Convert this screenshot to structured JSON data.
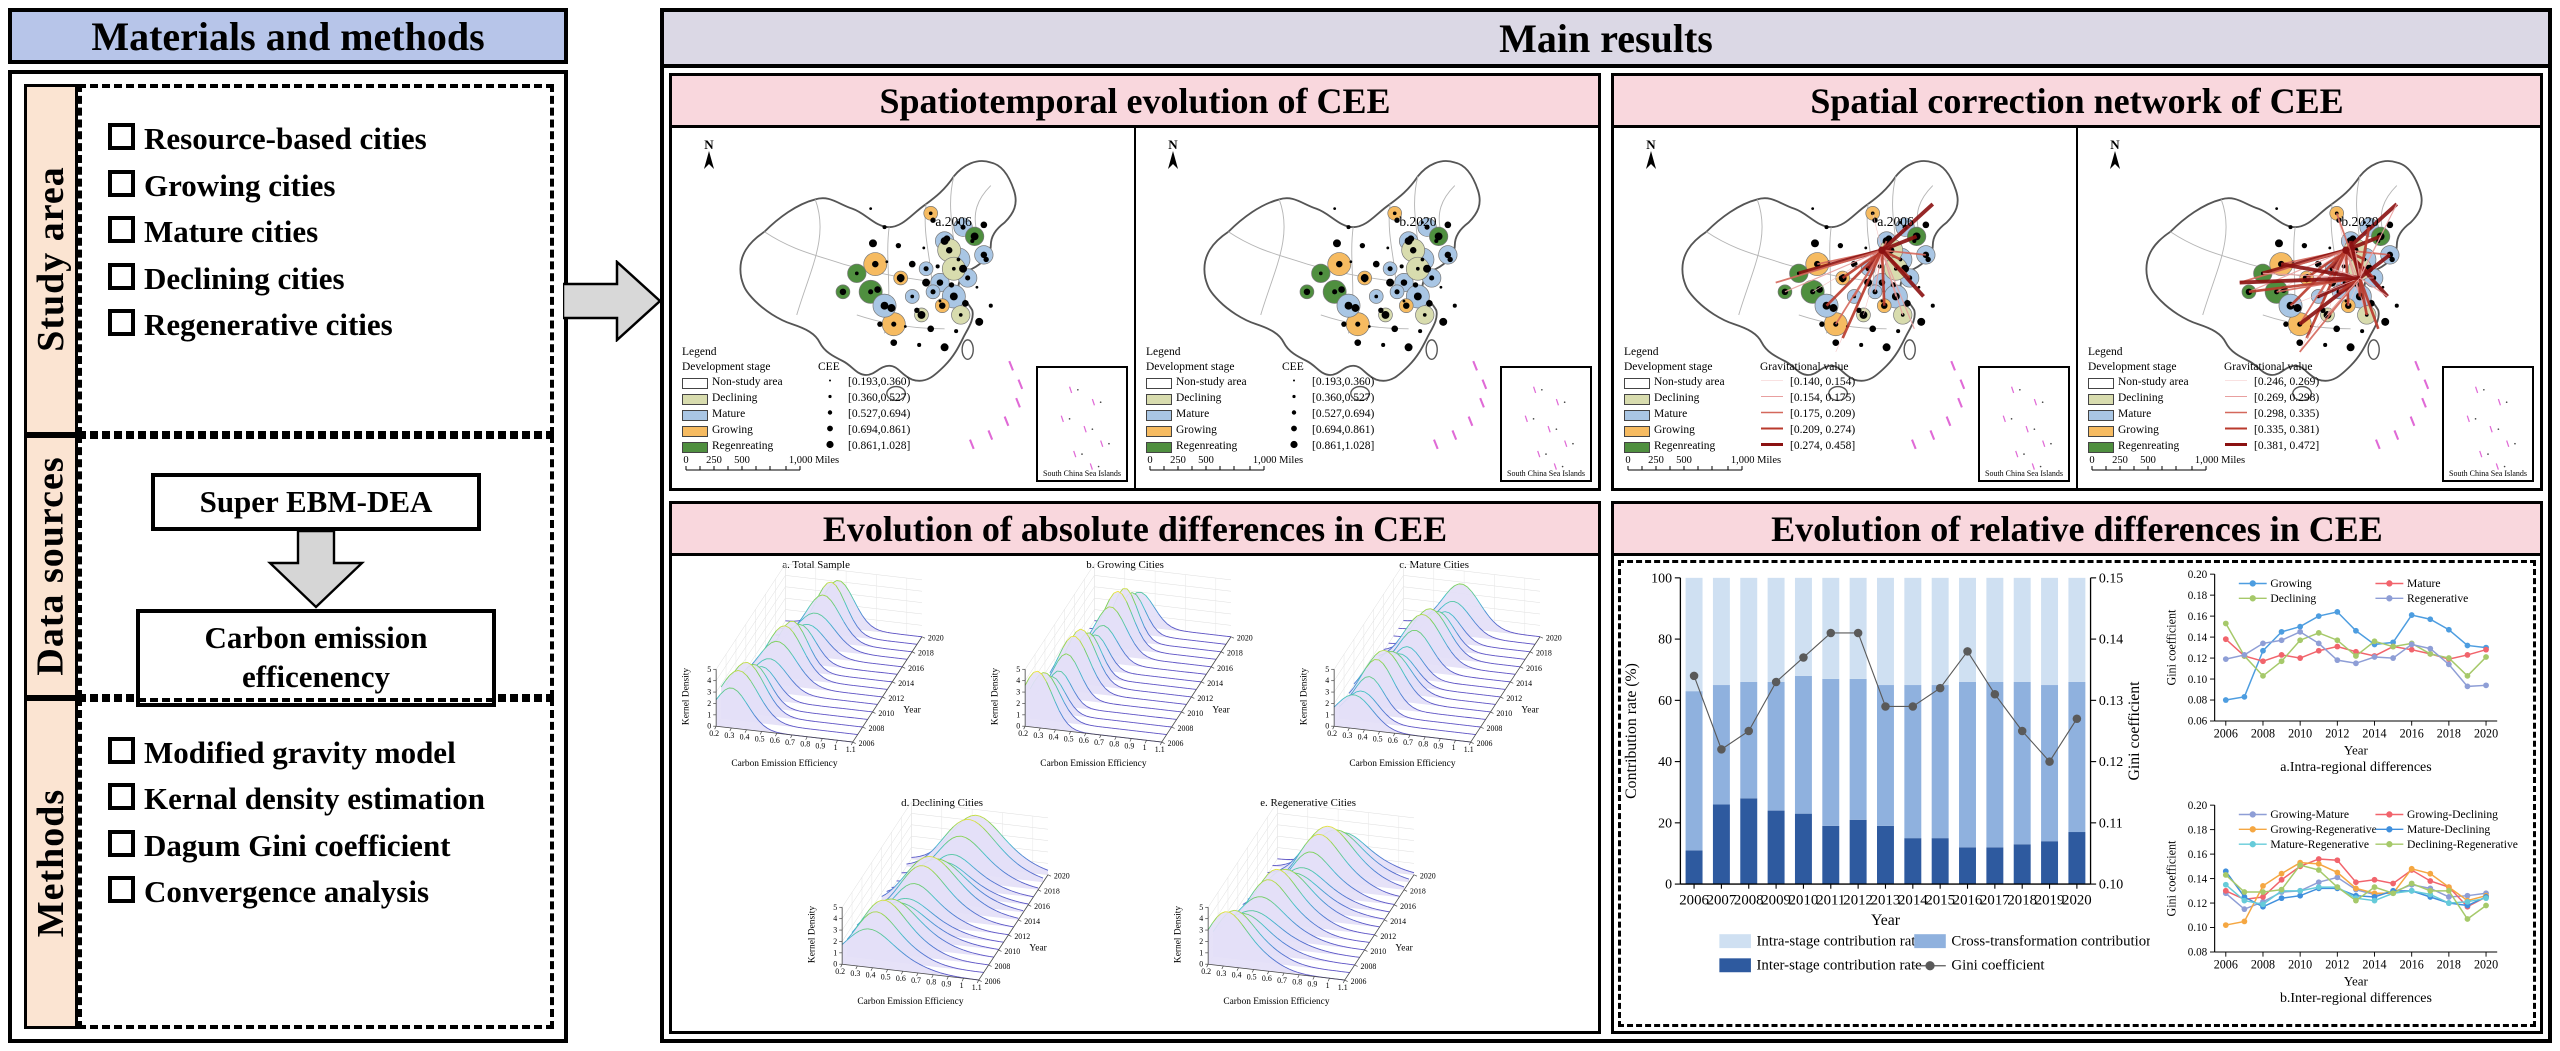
{
  "left_panel": {
    "title": "Materials and methods",
    "sections": [
      {
        "label": "Study area",
        "type": "checklist",
        "items": [
          "Resource-based cities",
          "Growing cities",
          "Mature cities",
          "Declining cities",
          "Regenerative cities"
        ]
      },
      {
        "label": "Data sources",
        "type": "flow",
        "boxes": [
          "Super EBM-DEA",
          "Carbon emission efficenency"
        ]
      },
      {
        "label": "Methods",
        "type": "checklist",
        "items": [
          "Modified gravity model",
          "Kernal density estimation",
          "Dagum Gini coefficient",
          "Convergence analysis"
        ]
      }
    ]
  },
  "main": {
    "title": "Main results",
    "quadrant_titles": {
      "spatiotemporal": "Spatiotemporal evolution of CEE",
      "network": "Spatial correction network of CEE",
      "absolute": "Evolution of absolute differences in CEE",
      "relative": "Evolution of relative differences in CEE"
    }
  },
  "map_legend": {
    "legend_title": "Legend",
    "stage_title": "Development stage",
    "north_label": "N",
    "stages": [
      {
        "name": "Non-study area",
        "color": "#ffffff"
      },
      {
        "name": "Declining",
        "color": "#d8dcae"
      },
      {
        "name": "Mature",
        "color": "#a9c6e4"
      },
      {
        "name": "Growing",
        "color": "#f6bb61"
      },
      {
        "name": "Regenreating",
        "color": "#4f8f3f"
      }
    ],
    "scale_labels": [
      "0",
      "250",
      "500",
      "1,000 Miles"
    ],
    "inset_caption": "South China Sea Islands"
  },
  "maps": {
    "spatiotemporal": {
      "value_title": "CEE",
      "panels": [
        {
          "label": "a.2006",
          "value_classes": [
            "[0.193,0.360)",
            "[0.360,0.527)",
            "[0.527,0.694)",
            "[0.694,0.861)",
            "[0.861,1.028]"
          ]
        },
        {
          "label": "b.2020",
          "value_classes": [
            "[0.193,0.360)",
            "[0.360,0.527)",
            "[0.527,0.694)",
            "[0.694,0.861)",
            "[0.861,1.028]"
          ]
        }
      ]
    },
    "network": {
      "value_title": "Gravitational value",
      "panels": [
        {
          "label": "a.2006",
          "value_classes": [
            "[0.140, 0.154)",
            "[0.154, 0.175)",
            "[0.175, 0.209)",
            "[0.209, 0.274)",
            "[0.274, 0.458]"
          ]
        },
        {
          "label": "b.2020",
          "value_classes": [
            "[0.246, 0.269)",
            "[0.269, 0.298)",
            "[0.298, 0.335)",
            "[0.335, 0.381)",
            "[0.381, 0.472]"
          ]
        }
      ]
    }
  },
  "chart_data": [
    {
      "id": "contribution",
      "type": "bar",
      "subtype": "stacked-with-line",
      "categories": [
        2006,
        2007,
        2008,
        2009,
        2010,
        2011,
        2012,
        2013,
        2014,
        2015,
        2016,
        2017,
        2018,
        2019,
        2020
      ],
      "series": [
        {
          "name": "Inter-stage contribution rate",
          "color": "#2e5a9f",
          "values": [
            11,
            26,
            28,
            24,
            23,
            19,
            21,
            19,
            15,
            15,
            12,
            12,
            13,
            14,
            17
          ]
        },
        {
          "name": "Cross-transformation contribution rate",
          "color": "#8fb1de",
          "values": [
            52,
            39,
            38,
            42,
            45,
            48,
            46,
            46,
            50,
            50,
            54,
            54,
            53,
            51,
            49
          ]
        },
        {
          "name": "Intra-stage contribution rate",
          "color": "#cfe0f2",
          "values": [
            37,
            35,
            34,
            34,
            32,
            33,
            33,
            35,
            35,
            35,
            34,
            34,
            34,
            35,
            34
          ]
        }
      ],
      "line_series": {
        "name": "Gini coefficient",
        "color": "#5a5a5a",
        "values": [
          0.134,
          0.122,
          0.125,
          0.133,
          0.137,
          0.141,
          0.141,
          0.129,
          0.129,
          0.132,
          0.138,
          0.131,
          0.125,
          0.12,
          0.127
        ]
      },
      "xlabel": "Year",
      "ylabel_left": "Contribution rate (%)",
      "ylabel_right": "Gini coefficient",
      "ylim_left": [
        0,
        100
      ],
      "ytick_left": 20,
      "ylim_right": [
        0.1,
        0.15
      ],
      "ytick_right": 0.01,
      "legend": [
        {
          "label": "Intra-stage contribution rate",
          "color": "#cfe0f2",
          "marker": "rect"
        },
        {
          "label": "Cross-transformation contribution rate",
          "color": "#8fb1de",
          "marker": "rect"
        },
        {
          "label": "Inter-stage contribution rate",
          "color": "#2e5a9f",
          "marker": "rect"
        },
        {
          "label": "Gini coefficient",
          "color": "#5a5a5a",
          "marker": "dotline"
        }
      ]
    },
    {
      "id": "intra_regional",
      "type": "line",
      "caption": "a.Intra-regional differences",
      "xlabel": "Year",
      "ylabel": "Gini coefficient",
      "ylim": [
        0.06,
        0.2
      ],
      "ytick": 0.02,
      "x": [
        2006,
        2007,
        2008,
        2009,
        2010,
        2011,
        2012,
        2013,
        2014,
        2015,
        2016,
        2017,
        2018,
        2019,
        2020
      ],
      "legend_columns": 2,
      "series": [
        {
          "name": "Growing",
          "color": "#4d9de0",
          "values": [
            0.08,
            0.083,
            0.127,
            0.145,
            0.15,
            0.16,
            0.164,
            0.146,
            0.133,
            0.135,
            0.161,
            0.157,
            0.147,
            0.132,
            0.13
          ]
        },
        {
          "name": "Mature",
          "color": "#f1646c",
          "values": [
            0.138,
            0.122,
            0.117,
            0.123,
            0.12,
            0.127,
            0.131,
            0.126,
            0.122,
            0.131,
            0.128,
            0.124,
            0.119,
            0.123,
            0.128
          ]
        },
        {
          "name": "Declining",
          "color": "#a6c96a",
          "values": [
            0.153,
            0.122,
            0.103,
            0.117,
            0.137,
            0.144,
            0.137,
            0.122,
            0.136,
            0.131,
            0.134,
            0.124,
            0.12,
            0.103,
            0.121
          ]
        },
        {
          "name": "Regenerative",
          "color": "#8e9ed6",
          "values": [
            0.119,
            0.123,
            0.134,
            0.137,
            0.145,
            0.134,
            0.118,
            0.115,
            0.121,
            0.12,
            0.133,
            0.129,
            0.114,
            0.093,
            0.094
          ]
        }
      ]
    },
    {
      "id": "inter_regional",
      "type": "line",
      "caption": "b.Inter-regional differences",
      "xlabel": "Year",
      "ylabel": "Gini coefficient",
      "ylim": [
        0.08,
        0.2
      ],
      "ytick": 0.02,
      "x": [
        2006,
        2007,
        2008,
        2009,
        2010,
        2011,
        2012,
        2013,
        2014,
        2015,
        2016,
        2017,
        2018,
        2019,
        2020
      ],
      "legend_columns": 2,
      "series": [
        {
          "name": "Growing-Mature",
          "color": "#8e9ed6",
          "values": [
            0.128,
            0.115,
            0.121,
            0.129,
            0.13,
            0.137,
            0.141,
            0.131,
            0.127,
            0.129,
            0.135,
            0.132,
            0.125,
            0.126,
            0.128
          ]
        },
        {
          "name": "Growing-Declining",
          "color": "#f1646c",
          "values": [
            0.13,
            0.123,
            0.125,
            0.139,
            0.15,
            0.156,
            0.155,
            0.137,
            0.139,
            0.136,
            0.147,
            0.138,
            0.133,
            0.117,
            0.125
          ]
        },
        {
          "name": "Growing-Regenerative",
          "color": "#f5a742",
          "values": [
            0.102,
            0.105,
            0.134,
            0.144,
            0.153,
            0.152,
            0.145,
            0.132,
            0.128,
            0.128,
            0.148,
            0.144,
            0.133,
            0.122,
            0.126
          ]
        },
        {
          "name": "Mature-Declining",
          "color": "#3f8fdd",
          "values": [
            0.146,
            0.125,
            0.117,
            0.124,
            0.126,
            0.132,
            0.132,
            0.126,
            0.125,
            0.13,
            0.13,
            0.125,
            0.12,
            0.118,
            0.125
          ]
        },
        {
          "name": "Mature-Regenerative",
          "color": "#66cbd9",
          "values": [
            0.135,
            0.122,
            0.119,
            0.13,
            0.13,
            0.133,
            0.133,
            0.124,
            0.122,
            0.128,
            0.13,
            0.127,
            0.12,
            0.121,
            0.124
          ]
        },
        {
          "name": "Declining-Regenerative",
          "color": "#a6c96a",
          "values": [
            0.143,
            0.129,
            0.129,
            0.131,
            0.151,
            0.147,
            0.133,
            0.122,
            0.133,
            0.128,
            0.136,
            0.13,
            0.13,
            0.107,
            0.118
          ]
        }
      ]
    },
    {
      "id": "kd_total",
      "type": "surface",
      "title": "a. Total Sample",
      "xlabel": "Carbon Emission Efficiency",
      "ylabel": "Year",
      "zlabel": "Kernel Density",
      "xlim": [
        0.2,
        1.1
      ],
      "xtick": 0.1,
      "years": [
        2006,
        2020
      ],
      "zlim": [
        0,
        5
      ],
      "shape": {
        "m": [
          0.3,
          0.55
        ],
        "s": 0.11,
        "amp": 4.6,
        "bimodal": false
      }
    },
    {
      "id": "kd_growing",
      "type": "surface",
      "title": "b. Growing Cities",
      "xlabel": "Carbon Emission Efficiency",
      "ylabel": "Year",
      "zlabel": "Kernel Density",
      "xlim": [
        0.2,
        1.1
      ],
      "xtick": 0.1,
      "years": [
        2006,
        2020
      ],
      "zlim": [
        0,
        5
      ],
      "shape": {
        "m": [
          0.28,
          0.5
        ],
        "s": 0.09,
        "amp": 5.0,
        "bimodal": false
      }
    },
    {
      "id": "kd_mature",
      "type": "surface",
      "title": "c. Mature Cities",
      "xlabel": "Carbon Emission Efficiency",
      "ylabel": "Year",
      "zlabel": "Kernel Density",
      "xlim": [
        0.2,
        1.1
      ],
      "xtick": 0.1,
      "years": [
        2006,
        2020
      ],
      "zlim": [
        0,
        5
      ],
      "shape": {
        "m": [
          0.33,
          0.58
        ],
        "s": 0.11,
        "amp": 4.4,
        "bimodal": false
      }
    },
    {
      "id": "kd_declining",
      "type": "surface",
      "title": "d. Declining Cities",
      "xlabel": "Carbon Emission Efficiency",
      "ylabel": "Year",
      "zlabel": "Kernel Density",
      "xlim": [
        0.2,
        1.1
      ],
      "xtick": 0.1,
      "years": [
        2006,
        2020
      ],
      "zlim": [
        0,
        5
      ],
      "shape": {
        "m": [
          0.35,
          0.6
        ],
        "s": 0.14,
        "amp": 3.6,
        "bimodal": true
      }
    },
    {
      "id": "kd_regenerative",
      "type": "surface",
      "title": "e. Regenerative Cities",
      "xlabel": "Carbon Emission Efficiency",
      "ylabel": "Year",
      "zlabel": "Kernel Density",
      "xlim": [
        0.2,
        1.1
      ],
      "xtick": 0.1,
      "years": [
        2006,
        2020
      ],
      "zlim": [
        0,
        5
      ],
      "shape": {
        "m": [
          0.3,
          0.62
        ],
        "s": 0.13,
        "amp": 3.8,
        "bimodal": true
      }
    }
  ]
}
